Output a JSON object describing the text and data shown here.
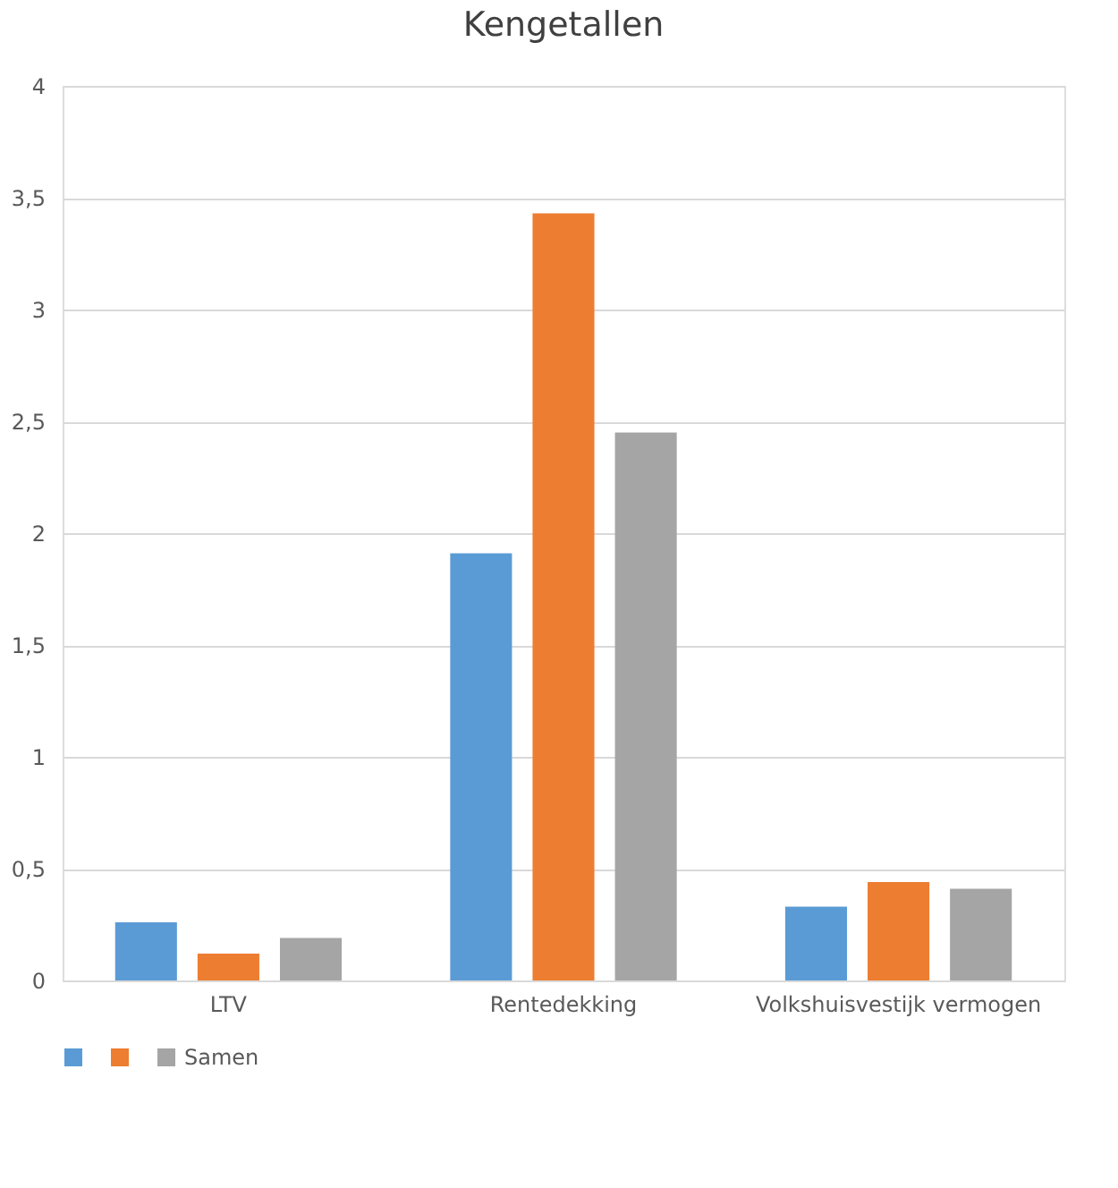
{
  "chart_data": {
    "type": "bar",
    "title": "Kengetallen",
    "categories": [
      "LTV",
      "Rentedekking",
      "Volkshuisvestijk vermogen"
    ],
    "series": [
      {
        "color": "#5b9bd5",
        "values": [
          0.26,
          1.91,
          0.33
        ]
      },
      {
        "color": "#ed7d31",
        "values": [
          0.12,
          3.43,
          0.44
        ]
      },
      {
        "name": "Samen",
        "color": "#a5a5a5",
        "values": [
          0.19,
          2.45,
          0.41
        ]
      }
    ],
    "ylim": [
      0,
      4
    ],
    "yticks": [
      0,
      {
        "value": 0.5,
        "label": "0,5"
      },
      1,
      {
        "value": 1.5,
        "label": "1,5"
      },
      2,
      {
        "value": 2.5,
        "label": "2,5"
      },
      3,
      {
        "value": 3.5,
        "label": "3,5"
      },
      4
    ],
    "grid": "y",
    "legend": "bottom"
  }
}
